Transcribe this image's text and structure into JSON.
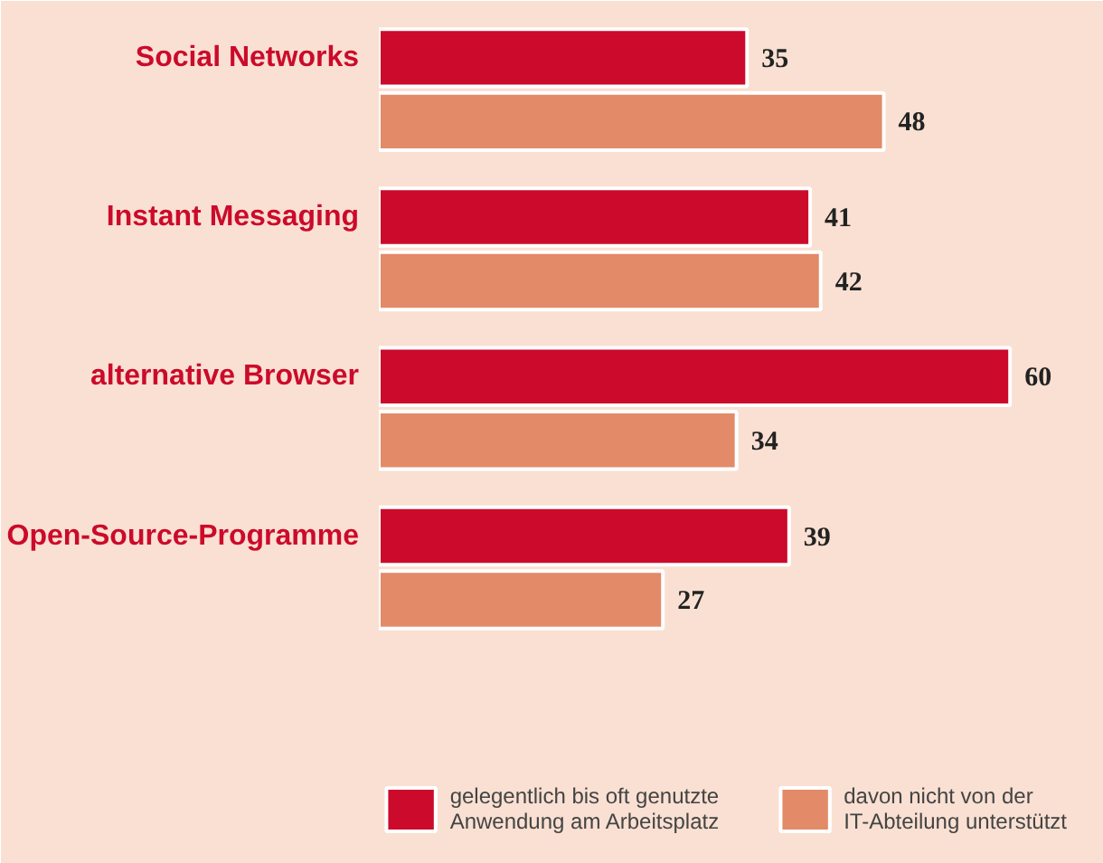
{
  "chart_data": {
    "type": "bar",
    "orientation": "horizontal",
    "categories": [
      "Social Networks",
      "Instant Messaging",
      "alternative Browser",
      "Open-Source-Programme"
    ],
    "series": [
      {
        "name": "gelegentlich bis oft genutzte Anwendung am Arbeitsplatz",
        "color": "#cc0a2b",
        "values": [
          35,
          41,
          60,
          39
        ]
      },
      {
        "name": "davon nicht von der IT-Abteilung unterstützt",
        "color": "#e38a68",
        "values": [
          48,
          42,
          34,
          27
        ]
      }
    ],
    "data_labels": true,
    "legend": "bottom right",
    "grid": false
  }
}
